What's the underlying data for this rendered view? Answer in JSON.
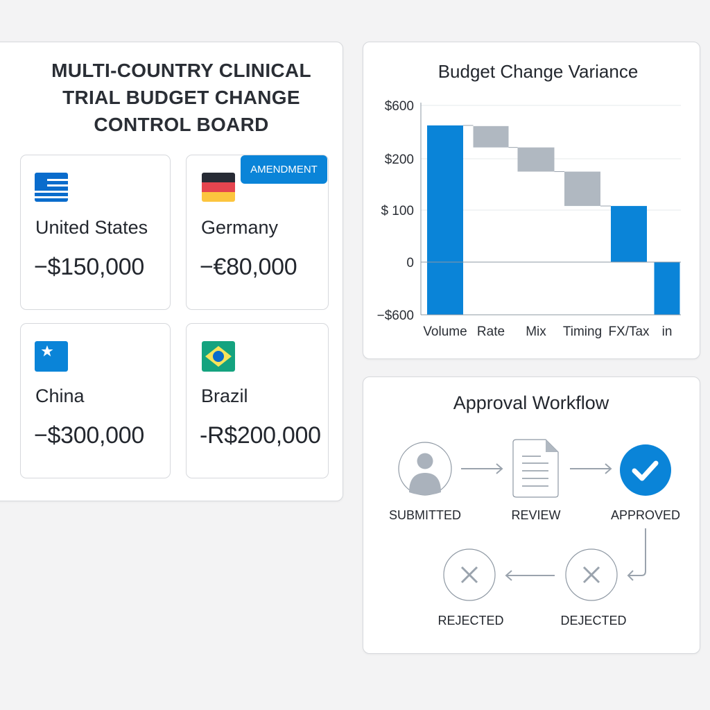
{
  "board": {
    "title_lines": [
      "MULTI-COUNTRY CLINICAL",
      "TRIAL BUDGET CHANGE",
      "CONTROL BOARD"
    ],
    "badge": "AMENDMENT",
    "countries": [
      {
        "name": "United States",
        "amount": "−$150,000",
        "flag": "us-flag-icon"
      },
      {
        "name": "Germany",
        "amount": "−€80,000",
        "flag": "germany-flag-icon"
      },
      {
        "name": "China",
        "amount": "−$300,000",
        "flag": "china-flag-icon"
      },
      {
        "name": "Brazil",
        "amount": "-R$200,000",
        "flag": "brazil-flag-icon"
      }
    ]
  },
  "chart_data": {
    "type": "bar",
    "subtype": "waterfall",
    "title": "Budget Change Variance",
    "categories": [
      "Volume",
      "Rate",
      "Mix",
      "Timing",
      "FX/Tax",
      "in"
    ],
    "bars": [
      {
        "category": "Volume",
        "start": -600,
        "end": 450,
        "kind": "total"
      },
      {
        "category": "Rate",
        "start": 445,
        "end": 285,
        "kind": "change"
      },
      {
        "category": "Mix",
        "start": 285,
        "end": 175,
        "kind": "change"
      },
      {
        "category": "Timing",
        "start": 175,
        "end": 108,
        "kind": "change"
      },
      {
        "category": "FX/Tax",
        "start": 0,
        "end": 108,
        "kind": "total"
      },
      {
        "category": "in",
        "start": 0,
        "end": -600,
        "kind": "total"
      }
    ],
    "y_ticks": [
      600,
      200,
      100,
      0,
      -600
    ],
    "y_tick_labels": [
      "$600",
      "$200",
      "$ 100",
      "0",
      "−$600"
    ],
    "ylim": [
      -600,
      600
    ],
    "grid": true,
    "colors": {
      "total": "#0a84d8",
      "change": "#b0b8c1"
    }
  },
  "workflow": {
    "title": "Approval Workflow",
    "steps": [
      {
        "label": "SUBMITTED",
        "icon": "user-icon"
      },
      {
        "label": "REVIEW",
        "icon": "document-icon"
      },
      {
        "label": "APPROVED",
        "icon": "check-circle-icon"
      },
      {
        "label": "DEJECTED",
        "icon": "x-circle-icon"
      },
      {
        "label": "REJECTED",
        "icon": "x-circle-icon"
      }
    ]
  }
}
